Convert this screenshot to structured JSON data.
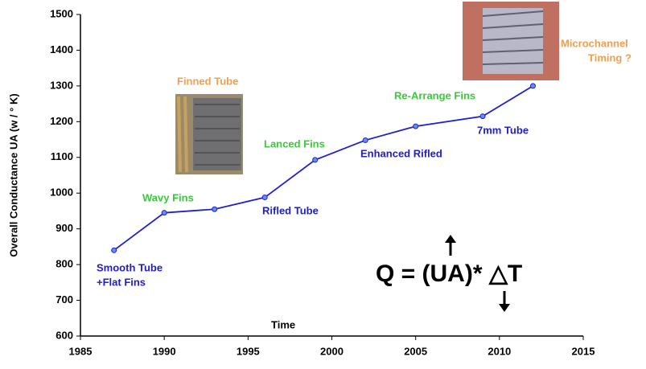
{
  "chart_data": {
    "type": "line",
    "x_label": "Time",
    "y_label": "Overall Conductance UA (w / ° K)",
    "x": [
      1987,
      1990,
      1993,
      1996,
      1999,
      2002,
      2005,
      2009,
      2012
    ],
    "series": [
      {
        "name": "UA",
        "color": "#2020d0",
        "values": [
          840,
          945,
          955,
          988,
          1093,
          1148,
          1187,
          1215,
          1300
        ]
      }
    ],
    "xlim": [
      1985,
      2015
    ],
    "xticks": [
      1985,
      1990,
      1995,
      2000,
      2005,
      2010,
      2015
    ],
    "ylim": [
      600,
      1500
    ],
    "yticks": [
      600,
      700,
      800,
      900,
      1000,
      1100,
      1200,
      1300,
      1400,
      1500
    ],
    "annotations": [
      {
        "text": "Smooth Tube",
        "color": "#2020c8"
      },
      {
        "text": "+Flat Fins",
        "color": "#2020c8"
      },
      {
        "text": "Wavy Fins",
        "color": "#3cc83c"
      },
      {
        "text": "Rifled Tube",
        "color": "#2020c8"
      },
      {
        "text": "Lanced Fins",
        "color": "#3cc83c"
      },
      {
        "text": "Enhanced Rifled",
        "color": "#2020c8"
      },
      {
        "text": "Re-Arrange Fins",
        "color": "#3cc83c"
      },
      {
        "text": "7mm Tube",
        "color": "#2020c8"
      },
      {
        "text": "Finned Tube",
        "color": "#f0a050"
      },
      {
        "text": "Microchannel",
        "color": "#f0a050"
      },
      {
        "text": "Timing ?",
        "color": "#f0a050"
      },
      {
        "text": "Q = (UA)* △T",
        "color": "#000000"
      }
    ]
  }
}
